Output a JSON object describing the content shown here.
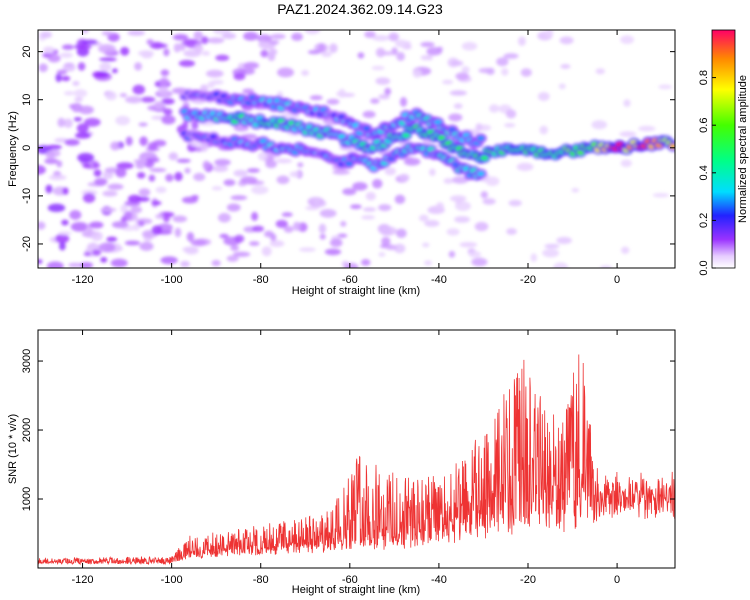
{
  "title": "PAZ1.2024.362.09.14.G23",
  "chart_data": [
    {
      "type": "heatmap",
      "xlabel": "Height of straight line (km)",
      "ylabel": "Frequency (Hz)",
      "xlim": [
        -130,
        13
      ],
      "ylim": [
        -25,
        24.5
      ],
      "xticks": [
        -120,
        -100,
        -80,
        -60,
        -40,
        -20,
        0
      ],
      "yticks": [
        -20,
        -10,
        0,
        10,
        20
      ],
      "colorbar": {
        "label": "Normalized spectral amplitude",
        "range": [
          0,
          1
        ],
        "ticks": [
          0.0,
          0.2,
          0.4,
          0.6,
          0.8
        ],
        "colormap": "rainbow (white-lavender at 0, violet, blue, cyan, green, yellow, red at 1)"
      },
      "ridge": [
        {
          "x": -95,
          "freq": 7,
          "amplitude": 0.35
        },
        {
          "x": -85,
          "freq": 6,
          "amplitude": 0.45
        },
        {
          "x": -75,
          "freq": 5,
          "amplitude": 0.45
        },
        {
          "x": -65,
          "freq": 3,
          "amplitude": 0.4
        },
        {
          "x": -55,
          "freq": 0,
          "amplitude": 0.45
        },
        {
          "x": -45,
          "freq": 4,
          "amplitude": 0.5
        },
        {
          "x": -38,
          "freq": 1,
          "amplitude": 0.5
        },
        {
          "x": -32,
          "freq": -2,
          "amplitude": 0.5
        },
        {
          "x": -25,
          "freq": 0,
          "amplitude": 0.5
        },
        {
          "x": -15,
          "freq": -1,
          "amplitude": 0.55
        },
        {
          "x": -5,
          "freq": 0,
          "amplitude": 0.7
        },
        {
          "x": 0,
          "freq": 0,
          "amplitude": 1.0
        },
        {
          "x": 8,
          "freq": 1,
          "amplitude": 0.85
        }
      ]
    },
    {
      "type": "line",
      "xlabel": "Height of straight line (km)",
      "ylabel": "SNR (10 * v/v)",
      "xlim": [
        -130,
        13
      ],
      "ylim": [
        0,
        3450
      ],
      "xticks": [
        -120,
        -100,
        -80,
        -60,
        -40,
        -20,
        0
      ],
      "yticks": [
        1000,
        2000,
        3000
      ],
      "series": [
        {
          "color": "#ee3333",
          "envelope": [
            {
              "x": -130,
              "base": 60,
              "amp": 80
            },
            {
              "x": -100,
              "base": 60,
              "amp": 100
            },
            {
              "x": -96,
              "base": 150,
              "amp": 300
            },
            {
              "x": -80,
              "base": 200,
              "amp": 400
            },
            {
              "x": -65,
              "base": 250,
              "amp": 550
            },
            {
              "x": -58,
              "base": 300,
              "amp": 1400
            },
            {
              "x": -48,
              "base": 300,
              "amp": 1000
            },
            {
              "x": -38,
              "base": 350,
              "amp": 1000
            },
            {
              "x": -28,
              "base": 500,
              "amp": 1700
            },
            {
              "x": -21,
              "base": 600,
              "amp": 2500
            },
            {
              "x": -12,
              "base": 600,
              "amp": 1500
            },
            {
              "x": -8,
              "base": 700,
              "amp": 2700
            },
            {
              "x": -5,
              "base": 750,
              "amp": 500
            },
            {
              "x": 0,
              "base": 850,
              "amp": 300
            },
            {
              "x": 13,
              "base": 800,
              "amp": 400
            }
          ]
        }
      ]
    }
  ]
}
